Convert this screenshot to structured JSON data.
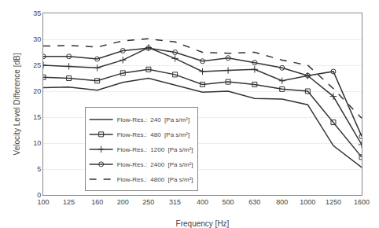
{
  "chart_data": {
    "type": "line",
    "x": [
      100,
      125,
      160,
      200,
      250,
      315,
      400,
      500,
      630,
      800,
      1000,
      1250,
      1600
    ],
    "series": [
      {
        "name": "Flow-Res.:  240  [Pa s/m²]",
        "color": "#333333",
        "marker": "none",
        "line_style": "solid",
        "values": [
          20.7,
          20.8,
          20.2,
          21.7,
          22.5,
          21.2,
          19.8,
          20.0,
          18.6,
          18.5,
          17.4,
          9.5,
          5.3
        ]
      },
      {
        "name": "Flow-Res.:  480  [Pa s/m²]",
        "color": "#333333",
        "marker": "square",
        "line_style": "solid",
        "values": [
          22.7,
          22.5,
          22.0,
          23.5,
          24.2,
          23.2,
          21.3,
          21.8,
          21.3,
          20.4,
          20.0,
          14.0,
          7.3
        ]
      },
      {
        "name": "Flow-Res.:  1200  [Pa s/m²]",
        "color": "#333333",
        "marker": "plus",
        "line_style": "solid",
        "values": [
          25.0,
          24.8,
          24.5,
          26.0,
          28.4,
          26.3,
          23.8,
          24.0,
          24.2,
          22.0,
          23.0,
          19.0,
          9.7
        ]
      },
      {
        "name": "Flow-Res.:  2400  [Pa s/m²]",
        "color": "#333333",
        "marker": "circle",
        "line_style": "solid",
        "values": [
          26.7,
          26.7,
          26.2,
          27.8,
          28.3,
          27.5,
          25.8,
          26.4,
          25.5,
          24.5,
          23.0,
          23.8,
          11.3
        ]
      },
      {
        "name": "Flow-Res.:  4800  [Pa s/m²]",
        "color": "#333333",
        "marker": "none",
        "line_style": "dashed",
        "values": [
          28.7,
          28.8,
          28.5,
          29.7,
          30.1,
          29.5,
          27.5,
          27.3,
          27.5,
          26.0,
          25.0,
          20.5,
          14.8
        ]
      }
    ],
    "xlabel": "Frequency [Hz]",
    "ylabel": "Velocity Level Difference [dB]",
    "log": "x",
    "xlim": [
      100,
      1600
    ],
    "xticks": [
      100,
      125,
      160,
      200,
      250,
      315,
      400,
      500,
      630,
      800,
      1000,
      1250,
      1600
    ],
    "ylim": [
      0,
      35
    ],
    "yticks": [
      0,
      5,
      10,
      15,
      20,
      25,
      30,
      35
    ],
    "grid": "y",
    "legend": "lower left"
  }
}
